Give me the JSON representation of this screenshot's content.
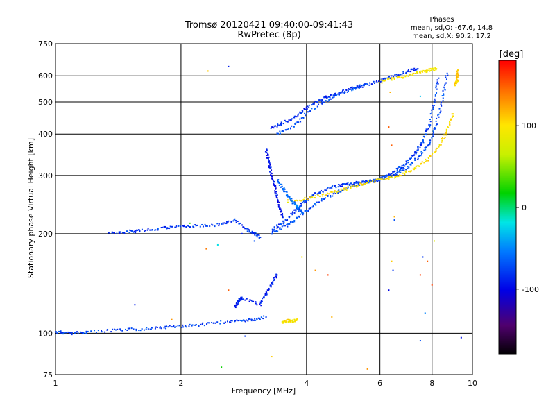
{
  "chart_data": {
    "type": "scatter",
    "title": "Tromsø 20120421 09:40:00-09:41:43",
    "subtitle": "RwPretec (8p)",
    "xlabel": "Frequency [MHz]",
    "ylabel": "Stationary phase Virtual Height [km]",
    "x_scale": "log",
    "y_scale": "log",
    "xlim": [
      1,
      10
    ],
    "ylim": [
      75,
      750
    ],
    "x_ticks": [
      "1",
      "2",
      "4",
      "6",
      "8",
      "10"
    ],
    "y_ticks": [
      "75",
      "100",
      "200",
      "300",
      "400",
      "500",
      "600",
      "750"
    ],
    "grid": true,
    "phases_title": "Phases",
    "phases_line1": "mean, sd,O: -67.6, 14.8",
    "phases_line2": "mean, sd,X:  90.2, 17.2",
    "colorbar": {
      "label": "[deg]",
      "range": [
        -180,
        180
      ],
      "ticks": [
        "100",
        "0",
        "-100"
      ],
      "ticks_values": [
        100,
        0,
        -100
      ]
    },
    "traces": [
      {
        "note_color": "blue",
        "phase": -75,
        "points": [
          [
            1.0,
            101
          ],
          [
            1.1,
            100
          ],
          [
            1.2,
            101
          ],
          [
            1.4,
            102
          ],
          [
            1.6,
            103
          ],
          [
            1.8,
            104
          ],
          [
            2.0,
            105
          ],
          [
            2.2,
            106
          ],
          [
            2.5,
            108
          ],
          [
            2.8,
            109
          ],
          [
            3.0,
            110
          ],
          [
            3.2,
            112
          ]
        ]
      },
      {
        "note_color": "blue",
        "phase": -80,
        "points": [
          [
            1.35,
            200
          ],
          [
            1.5,
            203
          ],
          [
            1.6,
            204
          ],
          [
            1.8,
            208
          ],
          [
            2.0,
            210
          ],
          [
            2.2,
            211
          ],
          [
            2.5,
            213
          ],
          [
            2.7,
            220
          ],
          [
            2.9,
            205
          ],
          [
            3.0,
            200
          ],
          [
            3.1,
            195
          ]
        ]
      },
      {
        "note_color": "blue",
        "phase": -78,
        "points": [
          [
            3.3,
            205
          ],
          [
            3.5,
            215
          ],
          [
            3.7,
            230
          ],
          [
            3.9,
            245
          ],
          [
            4.1,
            260
          ],
          [
            4.4,
            270
          ],
          [
            4.7,
            278
          ],
          [
            5.0,
            282
          ],
          [
            5.3,
            285
          ],
          [
            5.6,
            287
          ],
          [
            5.9,
            290
          ],
          [
            6.3,
            300
          ],
          [
            6.7,
            315
          ],
          [
            7.0,
            330
          ],
          [
            7.3,
            350
          ],
          [
            7.6,
            380
          ],
          [
            7.9,
            430
          ],
          [
            8.1,
            500
          ],
          [
            8.3,
            590
          ]
        ]
      },
      {
        "note_color": "blue",
        "phase": -72,
        "points": [
          [
            3.3,
            200
          ],
          [
            3.6,
            212
          ],
          [
            3.9,
            228
          ],
          [
            4.2,
            245
          ],
          [
            4.6,
            262
          ],
          [
            5.0,
            275
          ],
          [
            5.5,
            285
          ],
          [
            6.0,
            292
          ],
          [
            6.5,
            302
          ],
          [
            7.0,
            318
          ],
          [
            7.5,
            345
          ],
          [
            7.9,
            375
          ],
          [
            8.2,
            430
          ],
          [
            8.5,
            520
          ],
          [
            8.7,
            610
          ]
        ]
      },
      {
        "note_color": "blue",
        "phase": -85,
        "points": [
          [
            3.3,
            420
          ],
          [
            3.5,
            430
          ],
          [
            3.8,
            455
          ],
          [
            4.0,
            480
          ],
          [
            4.3,
            505
          ],
          [
            4.6,
            525
          ],
          [
            5.0,
            545
          ],
          [
            5.5,
            560
          ],
          [
            6.0,
            580
          ],
          [
            6.5,
            600
          ],
          [
            7.0,
            620
          ],
          [
            7.4,
            630
          ]
        ]
      },
      {
        "note_color": "blue",
        "phase": -70,
        "points": [
          [
            3.4,
            400
          ],
          [
            3.7,
            420
          ],
          [
            4.0,
            460
          ],
          [
            4.4,
            500
          ],
          [
            4.8,
            530
          ],
          [
            5.2,
            550
          ],
          [
            5.6,
            565
          ]
        ]
      },
      {
        "note_color": "yellow",
        "phase": 100,
        "points": [
          [
            3.6,
            250
          ],
          [
            4.0,
            255
          ],
          [
            4.4,
            262
          ],
          [
            4.8,
            270
          ],
          [
            5.3,
            280
          ],
          [
            5.8,
            288
          ],
          [
            6.3,
            295
          ],
          [
            6.8,
            302
          ],
          [
            7.3,
            315
          ],
          [
            7.8,
            335
          ],
          [
            8.3,
            365
          ],
          [
            8.7,
            410
          ],
          [
            9.0,
            460
          ]
        ]
      },
      {
        "note_color": "yellow",
        "phase": 95,
        "points": [
          [
            6.0,
            575
          ],
          [
            6.5,
            590
          ],
          [
            7.0,
            600
          ],
          [
            7.5,
            615
          ],
          [
            7.9,
            625
          ],
          [
            8.2,
            630
          ]
        ]
      },
      {
        "note_color": "yellow",
        "phase": 110,
        "points": [
          [
            9.1,
            560
          ],
          [
            9.2,
            580
          ],
          [
            9.2,
            600
          ],
          [
            9.2,
            620
          ]
        ]
      },
      {
        "note_color": "yellow",
        "phase": 100,
        "points": [
          [
            3.5,
            108
          ],
          [
            3.6,
            109
          ],
          [
            3.7,
            109
          ],
          [
            3.8,
            110
          ]
        ]
      },
      {
        "note_color": "blue",
        "phase": -90,
        "points": [
          [
            2.7,
            120
          ],
          [
            2.75,
            125
          ],
          [
            2.8,
            128
          ],
          [
            3.1,
            122
          ],
          [
            3.2,
            132
          ],
          [
            3.3,
            140
          ],
          [
            3.4,
            150
          ]
        ]
      },
      {
        "note_color": "blue",
        "phase": -95,
        "points": [
          [
            3.2,
            360
          ],
          [
            3.25,
            330
          ],
          [
            3.3,
            300
          ],
          [
            3.35,
            280
          ],
          [
            3.4,
            260
          ],
          [
            3.45,
            240
          ],
          [
            3.5,
            225
          ]
        ]
      },
      {
        "note_color": "blue",
        "phase": -60,
        "points": [
          [
            3.4,
            290
          ],
          [
            3.5,
            275
          ],
          [
            3.6,
            262
          ],
          [
            3.7,
            250
          ],
          [
            3.8,
            240
          ],
          [
            3.9,
            232
          ]
        ]
      }
    ],
    "scatter_points": [
      [
        2.32,
        620,
        110
      ],
      [
        2.6,
        640,
        -90
      ],
      [
        2.1,
        215,
        30
      ],
      [
        2.3,
        180,
        140
      ],
      [
        2.45,
        185,
        -20
      ],
      [
        3.0,
        190,
        -70
      ],
      [
        3.9,
        170,
        100
      ],
      [
        4.2,
        155,
        130
      ],
      [
        4.5,
        150,
        160
      ],
      [
        6.4,
        165,
        110
      ],
      [
        6.45,
        155,
        -80
      ],
      [
        7.6,
        170,
        -80
      ],
      [
        7.8,
        165,
        150
      ],
      [
        7.5,
        150,
        160
      ],
      [
        6.3,
        135,
        -100
      ],
      [
        8.0,
        140,
        160
      ],
      [
        7.7,
        115,
        -50
      ],
      [
        4.6,
        112,
        120
      ],
      [
        7.5,
        95,
        -70
      ],
      [
        9.4,
        97,
        -95
      ],
      [
        5.6,
        78,
        130
      ],
      [
        6.5,
        220,
        -70
      ],
      [
        6.5,
        225,
        120
      ],
      [
        8.1,
        190,
        80
      ],
      [
        2.5,
        79,
        20
      ],
      [
        3.3,
        85,
        110
      ],
      [
        2.8,
        200,
        -90
      ],
      [
        1.9,
        110,
        130
      ],
      [
        1.55,
        122,
        -90
      ],
      [
        2.85,
        98,
        -80
      ],
      [
        2.6,
        135,
        150
      ],
      [
        6.4,
        370,
        150
      ],
      [
        6.3,
        420,
        150
      ],
      [
        6.35,
        535,
        120
      ],
      [
        6.3,
        590,
        100
      ],
      [
        7.5,
        520,
        -30
      ]
    ]
  }
}
